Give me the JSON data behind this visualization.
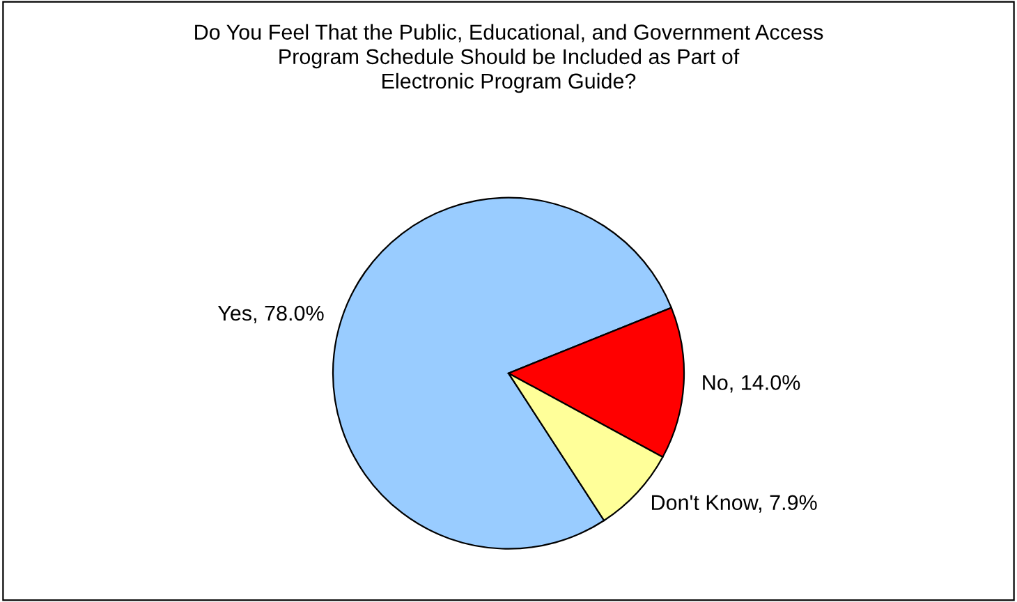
{
  "chart_data": {
    "type": "pie",
    "title": "Do You Feel That the Public, Educational, and Government Access\nProgram Schedule Should be Included as Part of\nElectronic Program Guide?",
    "categories": [
      "Yes",
      "No",
      "Don't Know"
    ],
    "values": [
      78.0,
      14.0,
      7.9
    ],
    "value_labels": [
      "78.0%",
      "14.0%",
      "7.9%"
    ],
    "colors": [
      "#99ccff",
      "#ff0000",
      "#ffff99"
    ]
  }
}
